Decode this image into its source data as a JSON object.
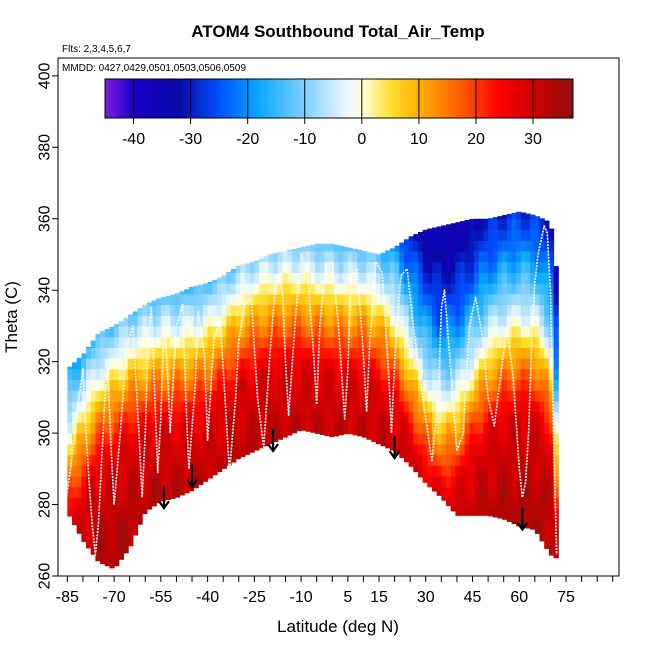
{
  "chart_data": {
    "type": "heatmap",
    "title": "ATOM4 Southbound Total_Air_Temp",
    "flights_note": "Flts: 2,3,4,5,6,7",
    "dates_note": "MMDD: 0427,0429,0501,0503,0506,0509",
    "xlabel": "Latitude (deg N)",
    "ylabel": "Theta (C)",
    "xlim": [
      -88,
      92
    ],
    "ylim": [
      260,
      405
    ],
    "x_ticks": [
      "-85",
      "-70",
      "-55",
      "-40",
      "-25",
      "-10",
      "5",
      "15",
      "30",
      "45",
      "60",
      "75"
    ],
    "x_tick_values": [
      -85,
      -70,
      -55,
      -40,
      -25,
      -10,
      5,
      15,
      30,
      45,
      60,
      75
    ],
    "x_minor_step": 5,
    "y_ticks": [
      "260",
      "280",
      "300",
      "320",
      "340",
      "360",
      "380",
      "400"
    ],
    "y_tick_values": [
      260,
      280,
      300,
      320,
      340,
      360,
      380,
      400
    ],
    "colorbar": {
      "min": -45,
      "max": 37,
      "tick_labels": [
        "-40",
        "-30",
        "-20",
        "-10",
        "0",
        "10",
        "20",
        "30"
      ],
      "tick_values": [
        -40,
        -30,
        -20,
        -10,
        0,
        10,
        20,
        30
      ],
      "color_stops": [
        {
          "v": -45,
          "c": "#7a1fe0"
        },
        {
          "v": -40,
          "c": "#1a00c8"
        },
        {
          "v": -32,
          "c": "#0a0aa8"
        },
        {
          "v": -25,
          "c": "#0050ff"
        },
        {
          "v": -18,
          "c": "#0aa8ff"
        },
        {
          "v": -10,
          "c": "#7fd0ff"
        },
        {
          "v": -3,
          "c": "#e6f6ff"
        },
        {
          "v": 0,
          "c": "#ffffe0"
        },
        {
          "v": 5,
          "c": "#ffe030"
        },
        {
          "v": 10,
          "c": "#ffb000"
        },
        {
          "v": 17,
          "c": "#ff6000"
        },
        {
          "v": 24,
          "c": "#ff0000"
        },
        {
          "v": 31,
          "c": "#c80000"
        },
        {
          "v": 37,
          "c": "#8b1010"
        }
      ]
    },
    "data_lat": [
      -85,
      -80,
      -75,
      -70,
      -65,
      -60,
      -55,
      -50,
      -45,
      -40,
      -35,
      -30,
      -25,
      -20,
      -15,
      -10,
      -5,
      0,
      5,
      10,
      15,
      20,
      25,
      30,
      35,
      40,
      45,
      50,
      55,
      60,
      65,
      70,
      72
    ],
    "data_theta_bottom": [
      278,
      270,
      264,
      262,
      268,
      278,
      281,
      282,
      284,
      287,
      290,
      293,
      295,
      297,
      299,
      301,
      300,
      299,
      300,
      299,
      297,
      295,
      291,
      286,
      282,
      277,
      277,
      277,
      276,
      274,
      273,
      266,
      265
    ],
    "data_theta_top": [
      318,
      322,
      328,
      330,
      333,
      336,
      338,
      339,
      341,
      342,
      344,
      347,
      348,
      350,
      351,
      352,
      353,
      353,
      352,
      351,
      350,
      352,
      355,
      357,
      358,
      359,
      360,
      360,
      361,
      362,
      361,
      359,
      345
    ],
    "tropopause_lat": [
      -85,
      -80,
      -75,
      -70,
      -65,
      -60,
      -55,
      -50,
      -45,
      -40,
      -35,
      -30,
      -25,
      -20,
      -15,
      -10,
      -5,
      0,
      5,
      10,
      15,
      20,
      25,
      30,
      35,
      40,
      45,
      50,
      55,
      60,
      65,
      70,
      72
    ],
    "tropopause_theta": [
      292,
      300,
      308,
      312,
      316,
      318,
      320,
      320,
      321,
      323,
      327,
      331,
      334,
      336,
      337,
      337,
      336,
      335,
      334,
      334,
      331,
      326,
      316,
      306,
      300,
      303,
      311,
      318,
      322,
      324,
      323,
      315,
      290
    ],
    "temperature_field_anchors": [
      {
        "dtheta": -40,
        "temp": 33
      },
      {
        "dtheta": -18,
        "temp": 28
      },
      {
        "dtheta": 0,
        "temp": 9
      },
      {
        "dtheta": 8,
        "temp": -2
      },
      {
        "dtheta": 18,
        "temp": -12
      },
      {
        "dtheta": 30,
        "temp": -23
      },
      {
        "dtheta": 50,
        "temp": -35
      }
    ],
    "flight_tracks": [
      {
        "lat": [
          -86,
          -84,
          -82,
          -80,
          -79,
          -78,
          -77,
          -76,
          -75,
          -74,
          -73,
          -72,
          -71,
          -70
        ],
        "theta": [
          278,
          290,
          305,
          318,
          300,
          286,
          274,
          266,
          275,
          292,
          309,
          318,
          296,
          280
        ]
      },
      {
        "lat": [
          -70,
          -68,
          -66,
          -64,
          -62,
          -61,
          -60,
          -59,
          -58,
          -57,
          -56,
          -55,
          -54,
          -53,
          -52
        ],
        "theta": [
          280,
          300,
          324,
          330,
          300,
          282,
          300,
          328,
          335,
          312,
          289,
          304,
          330,
          320,
          300
        ]
      },
      {
        "lat": [
          -52,
          -50,
          -48,
          -47,
          -46,
          -44,
          -43,
          -41,
          -40,
          -38,
          -36,
          -34,
          -33,
          -31,
          -30
        ],
        "theta": [
          300,
          330,
          336,
          310,
          290,
          313,
          334,
          322,
          298,
          326,
          332,
          304,
          289,
          310,
          326
        ]
      },
      {
        "lat": [
          -30,
          -28,
          -26,
          -24,
          -22,
          -20,
          -18,
          -16,
          -15,
          -14,
          -12,
          -10,
          -8,
          -6,
          -5,
          -4,
          -2,
          0
        ],
        "theta": [
          326,
          336,
          338,
          310,
          296,
          322,
          344,
          340,
          320,
          305,
          330,
          350,
          346,
          322,
          308,
          330,
          347,
          348
        ]
      },
      {
        "lat": [
          0,
          2,
          4,
          5,
          6,
          8,
          10,
          11,
          12,
          14,
          16,
          18,
          19,
          20,
          22
        ],
        "theta": [
          348,
          330,
          304,
          318,
          344,
          346,
          322,
          306,
          325,
          348,
          345,
          318,
          300,
          320,
          344
        ]
      },
      {
        "lat": [
          22,
          24,
          26,
          28,
          30,
          32,
          34,
          35,
          36,
          38,
          40,
          42,
          44,
          46,
          48,
          50,
          52,
          54,
          56
        ],
        "theta": [
          344,
          346,
          330,
          316,
          304,
          292,
          310,
          335,
          340,
          318,
          295,
          300,
          330,
          338,
          328,
          310,
          302,
          316,
          330
        ]
      },
      {
        "lat": [
          56,
          58,
          60,
          61,
          62,
          63,
          64,
          65,
          66,
          67,
          68,
          69,
          70,
          71,
          72
        ],
        "theta": [
          330,
          316,
          290,
          282,
          286,
          300,
          326,
          342,
          350,
          354,
          358,
          356,
          340,
          300,
          266
        ]
      }
    ],
    "arrows": [
      {
        "lat": -54,
        "theta": 279
      },
      {
        "lat": -45,
        "theta": 285
      },
      {
        "lat": -19,
        "theta": 295
      },
      {
        "lat": 20,
        "theta": 293
      },
      {
        "lat": 61,
        "theta": 273
      }
    ]
  }
}
